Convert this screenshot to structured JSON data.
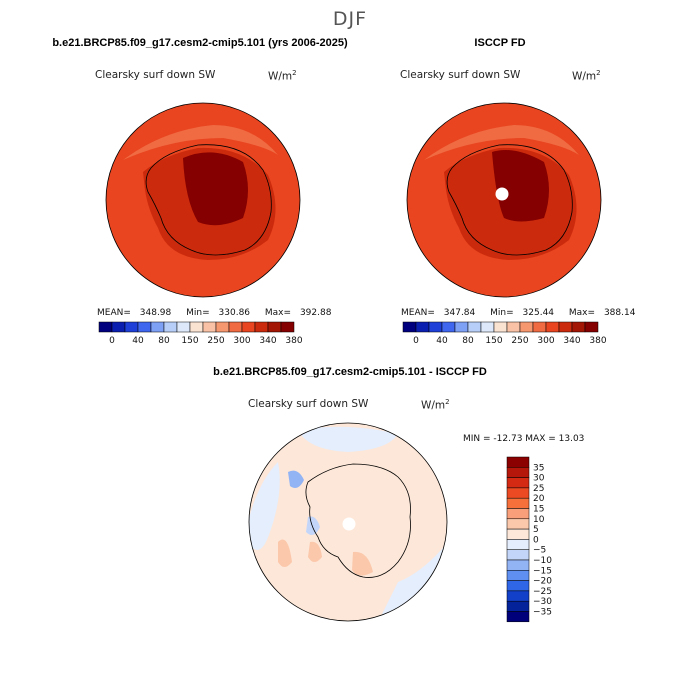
{
  "page": {
    "title": "DJF"
  },
  "panels": [
    {
      "title": "b.e21.BRCP85.f09_g17.cesm2-cmip5.101 (yrs 2006-2025)",
      "variable": "Clearsky surf down SW",
      "units_base": "W/m",
      "units_exp": "2",
      "stats": {
        "mean_label": "MEAN=",
        "mean": "348.98",
        "min_label": "Min=",
        "min": "330.86",
        "max_label": "Max=",
        "max": "392.88"
      }
    },
    {
      "title": "ISCCP FD",
      "variable": "Clearsky surf down SW",
      "units_base": "W/m",
      "units_exp": "2",
      "stats": {
        "mean_label": "MEAN=",
        "mean": "347.84",
        "min_label": "Min=",
        "min": "325.44",
        "max_label": "Max=",
        "max": "388.14"
      }
    },
    {
      "title": "b.e21.BRCP85.f09_g17.cesm2-cmip5.101 - ISCCP FD",
      "variable": "Clearsky surf down SW",
      "units_base": "W/m",
      "units_exp": "2",
      "stats": {
        "minmax_text": "MIN = -12.73  MAX =  13.03"
      }
    }
  ],
  "chart_data": [
    {
      "type": "heatmap",
      "title": "b.e21.BRCP85.f09_g17.cesm2-cmip5.101 (yrs 2006-2025)",
      "projection": "south-polar-stereographic",
      "variable": "Clearsky surf down SW",
      "units": "W/m2",
      "mean": 348.98,
      "min": 330.86,
      "max": 392.88,
      "colorbar": {
        "orientation": "horizontal",
        "tick_labels": [
          "0",
          "40",
          "80",
          "150",
          "250",
          "300",
          "340",
          "380"
        ],
        "colors": [
          "#00007f",
          "#0a1fb0",
          "#1e40d8",
          "#3f66ee",
          "#7ea0f5",
          "#b7cff8",
          "#dde9fb",
          "#fbe3d2",
          "#f9c2a6",
          "#f5976f",
          "#f06a42",
          "#e84520",
          "#cc2a0c",
          "#a31606",
          "#850000"
        ]
      }
    },
    {
      "type": "heatmap",
      "title": "ISCCP FD",
      "projection": "south-polar-stereographic",
      "variable": "Clearsky surf down SW",
      "units": "W/m2",
      "mean": 347.84,
      "min": 325.44,
      "max": 388.14,
      "colorbar": {
        "orientation": "horizontal",
        "tick_labels": [
          "0",
          "40",
          "80",
          "150",
          "250",
          "300",
          "340",
          "380"
        ],
        "colors": [
          "#00007f",
          "#0a1fb0",
          "#1e40d8",
          "#3f66ee",
          "#7ea0f5",
          "#b7cff8",
          "#dde9fb",
          "#fbe3d2",
          "#f9c2a6",
          "#f5976f",
          "#f06a42",
          "#e84520",
          "#cc2a0c",
          "#a31606",
          "#850000"
        ]
      }
    },
    {
      "type": "heatmap",
      "title": "b.e21.BRCP85.f09_g17.cesm2-cmip5.101 - ISCCP FD",
      "projection": "south-polar-stereographic",
      "variable": "Clearsky surf down SW",
      "units": "W/m2",
      "min": -12.73,
      "max": 13.03,
      "colorbar": {
        "orientation": "vertical",
        "tick_labels": [
          "35",
          "30",
          "25",
          "20",
          "15",
          "10",
          "5",
          "0",
          "−5",
          "−10",
          "−15",
          "−20",
          "−25",
          "−30",
          "−35"
        ],
        "colors": [
          "#8b0000",
          "#b5170b",
          "#d42a14",
          "#eb4a22",
          "#f6703c",
          "#f9a07a",
          "#fbc8ab",
          "#fde7d8",
          "#e5eefc",
          "#c3d6fa",
          "#92b4f5",
          "#5f8ff0",
          "#2f66e8",
          "#1340c9",
          "#04229a",
          "#00007a"
        ]
      }
    }
  ]
}
